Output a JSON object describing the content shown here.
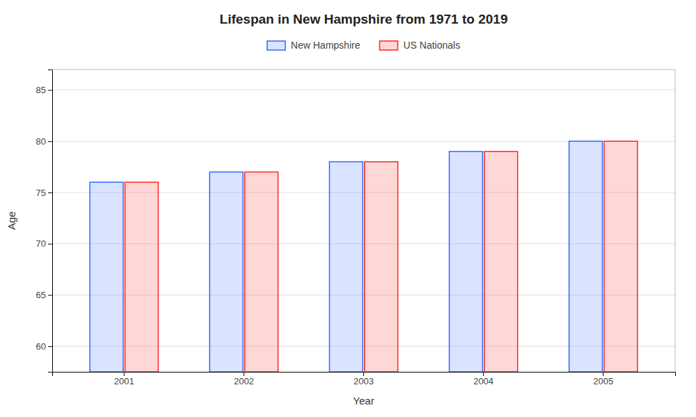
{
  "chart_data": {
    "type": "bar",
    "title": "Lifespan in New Hampshire from 1971 to 2019",
    "xlabel": "Year",
    "ylabel": "Age",
    "categories": [
      "2001",
      "2002",
      "2003",
      "2004",
      "2005"
    ],
    "series": [
      {
        "name": "New Hampshire",
        "color": "#3366ff",
        "values": [
          76,
          77,
          78,
          79,
          80
        ]
      },
      {
        "name": "US Nationals",
        "color": "#ff2222",
        "values": [
          76,
          77,
          78,
          79,
          80
        ]
      }
    ],
    "ylim": [
      57.5,
      87
    ],
    "yticks": [
      60,
      65,
      70,
      75,
      80,
      85
    ],
    "grid": true,
    "legend": "top"
  }
}
